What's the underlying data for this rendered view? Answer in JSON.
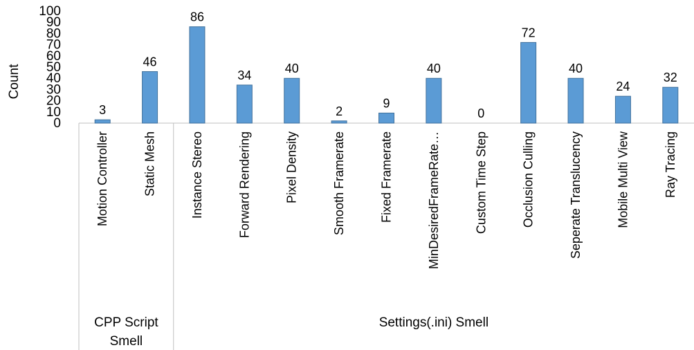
{
  "chart_data": {
    "type": "bar",
    "ylabel": "Count",
    "ylim": [
      0,
      100
    ],
    "yticks": [
      0,
      10,
      20,
      30,
      40,
      50,
      60,
      70,
      80,
      90,
      100
    ],
    "categories": [
      "Motion Controller",
      "Static Mesh",
      "Instance Stereo",
      "Forward Rendering",
      "Pixel Density",
      "Smooth Framerate",
      "Fixed Framerate",
      "MinDesiredFrameRate…",
      "Custom Time Step",
      "Occlusion Culling",
      "Seperate Translucency",
      "Mobile Multi View",
      "Ray Tracing"
    ],
    "values": [
      3,
      46,
      86,
      34,
      40,
      2,
      9,
      40,
      0,
      72,
      40,
      24,
      32
    ],
    "data_labels": [
      "3",
      "46",
      "86",
      "34",
      "40",
      "2",
      "9",
      "40",
      "0",
      "72",
      "40",
      "24",
      "32"
    ],
    "groups": [
      {
        "lines": [
          "CPP Script",
          "Smell"
        ],
        "count": 2
      },
      {
        "lines": [
          "Settings(.ini) Smell"
        ],
        "count": 11
      }
    ],
    "colors": {
      "bar": "#5b9bd5",
      "bar_border": "#41719c",
      "axis": "#bfbfbf"
    },
    "grid": false,
    "legend": "none"
  }
}
